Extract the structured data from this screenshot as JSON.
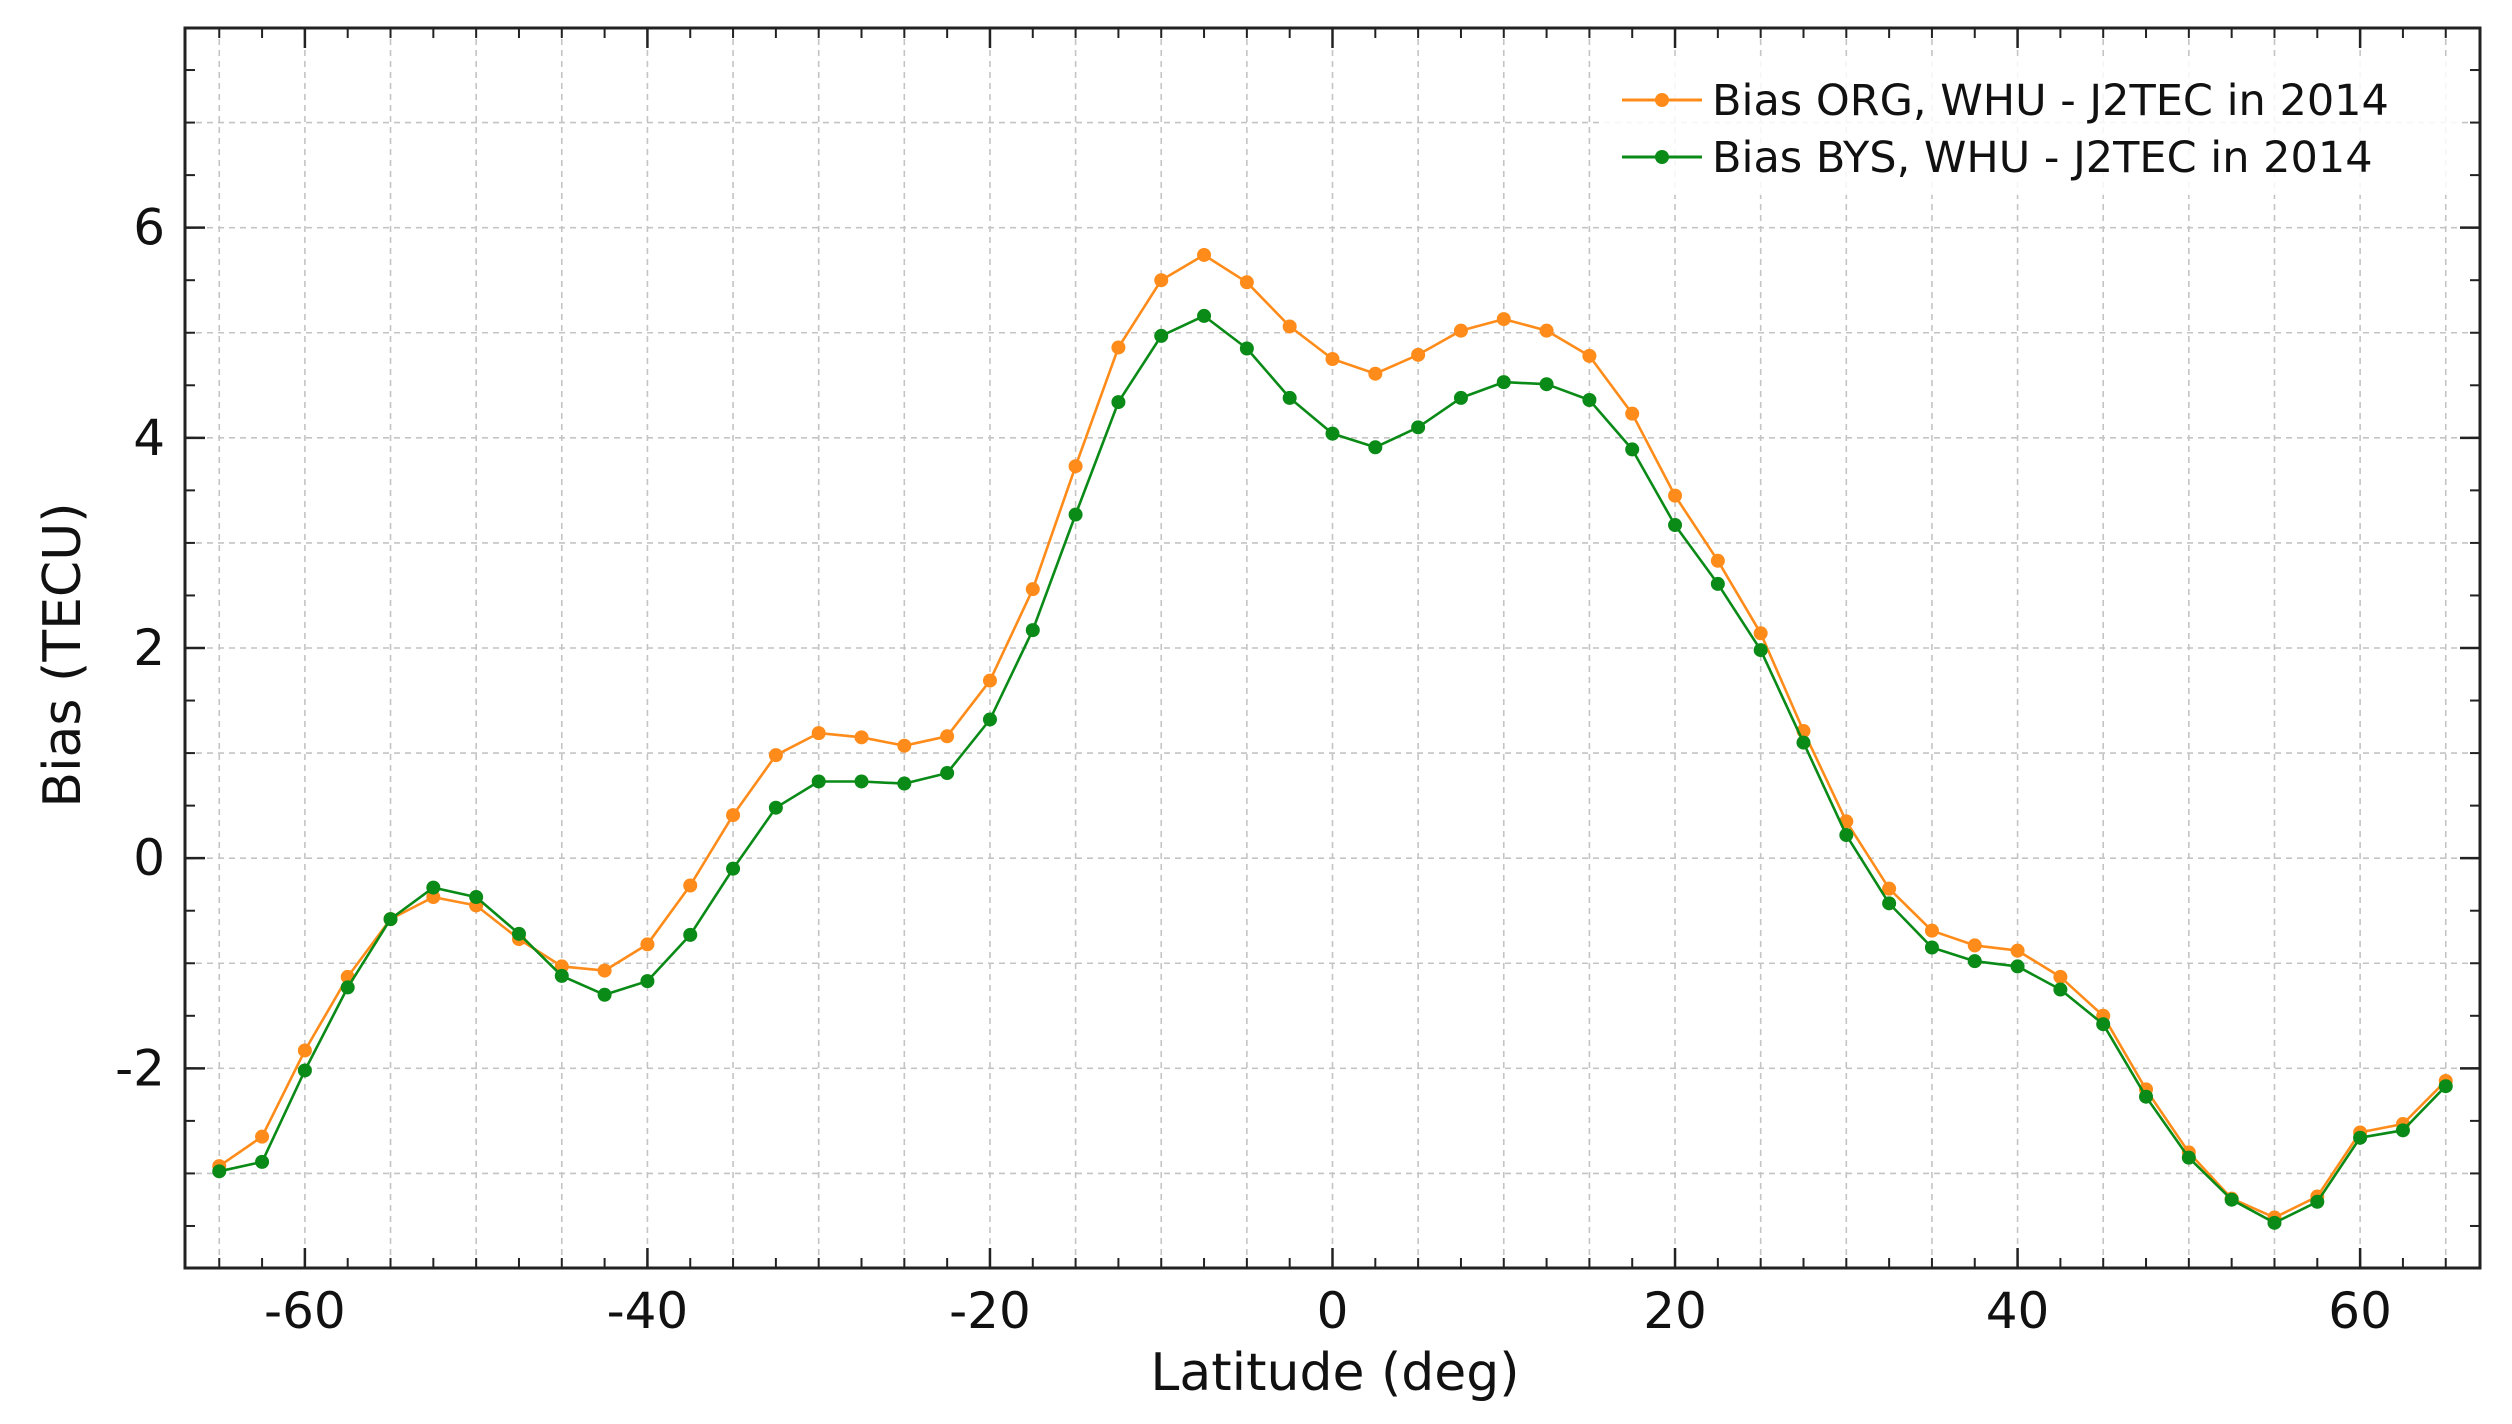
{
  "chart_data": {
    "type": "line",
    "title": "",
    "xlabel": "Latitude (deg)",
    "ylabel": "Bias (TECU)",
    "xlim": [
      -67,
      67
    ],
    "ylim": [
      -3.9,
      7.9
    ],
    "xticks": [
      -60,
      -40,
      -20,
      0,
      20,
      40,
      60
    ],
    "yticks": [
      -2,
      0,
      2,
      4,
      6
    ],
    "grid": true,
    "legend": "top-right",
    "x": [
      -65,
      -62.5,
      -60,
      -57.5,
      -55,
      -52.5,
      -50,
      -47.5,
      -45,
      -42.5,
      -40,
      -37.5,
      -35,
      -32.5,
      -30,
      -27.5,
      -25,
      -22.5,
      -20,
      -17.5,
      -15,
      -12.5,
      -10,
      -7.5,
      -5,
      -2.5,
      0,
      2.5,
      5,
      7.5,
      10,
      12.5,
      15,
      17.5,
      20,
      22.5,
      25,
      27.5,
      30,
      32.5,
      35,
      37.5,
      40,
      42.5,
      45,
      47.5,
      50,
      52.5,
      55,
      57.5,
      60,
      62.5,
      65
    ],
    "series": [
      {
        "name": "Bias ORG, WHU - J2TEC in 2014",
        "color": "#ff8c1a",
        "values": [
          -2.93,
          -2.65,
          -1.83,
          -1.13,
          -0.58,
          -0.37,
          -0.45,
          -0.77,
          -1.03,
          -1.07,
          -0.82,
          -0.26,
          0.41,
          0.98,
          1.19,
          1.15,
          1.07,
          1.16,
          1.69,
          2.56,
          3.73,
          4.86,
          5.5,
          5.74,
          5.48,
          5.06,
          4.75,
          4.61,
          4.79,
          5.02,
          5.13,
          5.02,
          4.78,
          4.23,
          3.45,
          2.83,
          2.14,
          1.21,
          0.35,
          -0.29,
          -0.69,
          -0.83,
          -0.88,
          -1.13,
          -1.5,
          -2.2,
          -2.8,
          -3.24,
          -3.42,
          -3.22,
          -2.61,
          -2.53,
          -2.12
        ]
      },
      {
        "name": "Bias BYS, WHU - J2TEC in 2014",
        "color": "#0a8a16",
        "values": [
          -2.98,
          -2.89,
          -2.02,
          -1.23,
          -0.58,
          -0.28,
          -0.37,
          -0.72,
          -1.12,
          -1.3,
          -1.17,
          -0.73,
          -0.1,
          0.48,
          0.73,
          0.73,
          0.71,
          0.81,
          1.32,
          2.17,
          3.27,
          4.34,
          4.97,
          5.16,
          4.85,
          4.38,
          4.04,
          3.91,
          4.1,
          4.38,
          4.53,
          4.51,
          4.36,
          3.89,
          3.17,
          2.61,
          1.98,
          1.1,
          0.22,
          -0.43,
          -0.85,
          -0.98,
          -1.03,
          -1.25,
          -1.58,
          -2.27,
          -2.85,
          -3.25,
          -3.47,
          -3.27,
          -2.66,
          -2.59,
          -2.17
        ]
      }
    ]
  }
}
